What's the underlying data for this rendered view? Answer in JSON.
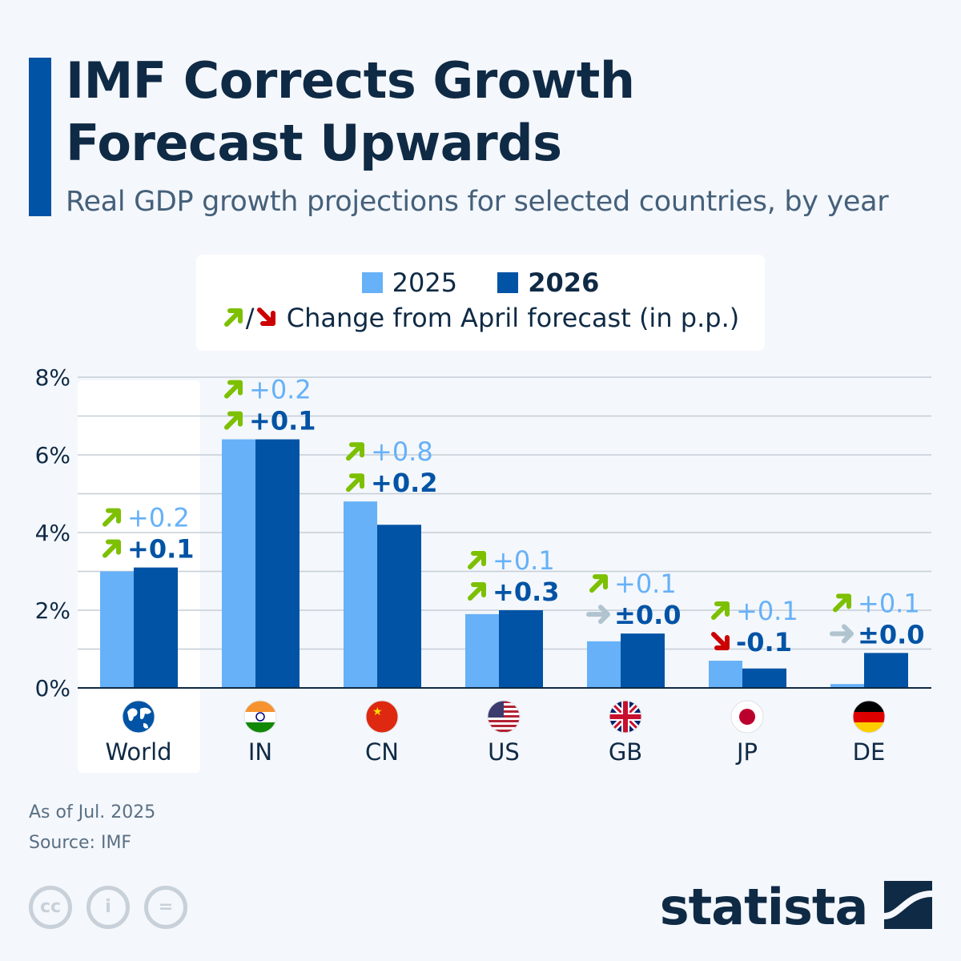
{
  "header": {
    "title_line1": "IMF Corrects Growth",
    "title_line2": "Forecast Upwards",
    "subtitle": "Real GDP growth projections for selected countries, by year"
  },
  "legend": {
    "series1": "2025",
    "series2": "2026",
    "separator": "/",
    "change_note": "Change from April forecast (in p.p.)"
  },
  "colors": {
    "s2025": "#66b1f8",
    "s2026": "#0053a5",
    "up": "#7cc000",
    "down": "#cc0000",
    "flat": "#b0c4cf"
  },
  "chart_data": {
    "type": "bar",
    "categories": [
      "World",
      "IN",
      "CN",
      "US",
      "GB",
      "JP",
      "DE"
    ],
    "series": [
      {
        "name": "2025",
        "values": [
          3.0,
          6.4,
          4.8,
          1.9,
          1.2,
          0.7,
          0.1
        ],
        "changes": [
          "+0.2",
          "+0.2",
          "+0.8",
          "+0.1",
          "+0.1",
          "+0.1",
          "+0.1"
        ],
        "change_dir": [
          "up",
          "up",
          "up",
          "up",
          "up",
          "up",
          "up"
        ]
      },
      {
        "name": "2026",
        "values": [
          3.1,
          6.4,
          4.2,
          2.0,
          1.4,
          0.5,
          0.9
        ],
        "changes": [
          "+0.1",
          "+0.1",
          "+0.2",
          "+0.3",
          "±0.0",
          "-0.1",
          "±0.0"
        ],
        "change_dir": [
          "up",
          "up",
          "up",
          "up",
          "flat",
          "down",
          "flat"
        ]
      }
    ],
    "ylim": [
      0,
      8
    ],
    "yticks": [
      "0%",
      "2%",
      "4%",
      "6%",
      "8%"
    ],
    "ytick_values": [
      0,
      2,
      4,
      6,
      8
    ],
    "grid": true,
    "highlighted_category": "World",
    "flag_icons": [
      "globe-icon",
      "india-flag-icon",
      "china-flag-icon",
      "us-flag-icon",
      "uk-flag-icon",
      "japan-flag-icon",
      "germany-flag-icon"
    ]
  },
  "footer": {
    "as_of": "As of Jul. 2025",
    "source": "Source: IMF",
    "brand": "statista"
  }
}
